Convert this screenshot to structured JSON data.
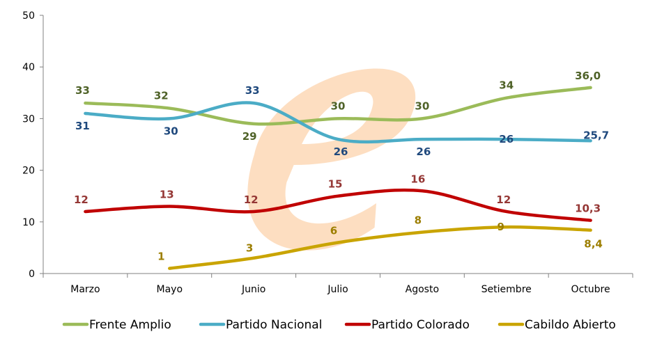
{
  "chart_data": {
    "type": "line",
    "categories": [
      "Marzo",
      "Mayo",
      "Junio",
      "Julio",
      "Agosto",
      "Setiembre",
      "Octubre"
    ],
    "ylim": [
      0,
      50
    ],
    "yticks": [
      0,
      10,
      20,
      30,
      40,
      50
    ],
    "grid": false,
    "legend": "bottom",
    "watermark": "e-letter-logo",
    "series": [
      {
        "name": "Frente Amplio",
        "color": "#9bbb59",
        "label_color": "#4f6228",
        "values": [
          33,
          32,
          29,
          30,
          30,
          34,
          36.0
        ],
        "labels": [
          "33",
          "32",
          "29",
          "30",
          "30",
          "34",
          "36,0"
        ]
      },
      {
        "name": "Partido Nacional",
        "color": "#4bacc6",
        "label_color": "#1f497d",
        "values": [
          31,
          30,
          33,
          26,
          26,
          26,
          25.7
        ],
        "labels": [
          "31",
          "30",
          "33",
          "26",
          "26",
          "26",
          "25,7"
        ]
      },
      {
        "name": "Partido Colorado",
        "color": "#c00000",
        "label_color": "#953735",
        "values": [
          12,
          13,
          12,
          15,
          16,
          12,
          10.3
        ],
        "labels": [
          "12",
          "13",
          "12",
          "15",
          "16",
          "12",
          "10,3"
        ]
      },
      {
        "name": "Cabildo Abierto",
        "color": "#c9a400",
        "label_color": "#9c7e00",
        "values": [
          null,
          1,
          3,
          6,
          8,
          9,
          8.4
        ],
        "labels": [
          null,
          "1",
          "3",
          "6",
          "8",
          "9",
          "8,4"
        ]
      }
    ]
  }
}
